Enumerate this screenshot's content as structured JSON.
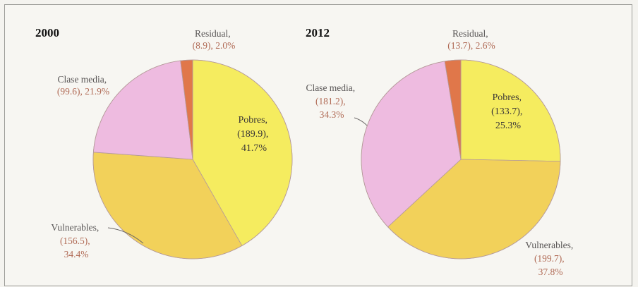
{
  "chart_data": [
    {
      "type": "pie",
      "title": "2000",
      "slices": [
        {
          "name": "Pobres",
          "value": 189.9,
          "percent": 41.7,
          "value_text": "(189.9),",
          "percent_text": "41.7%",
          "color": "#f5ec5f"
        },
        {
          "name": "Vulnerables",
          "value": 156.5,
          "percent": 34.4,
          "value_text": "(156.5),",
          "percent_text": "34.4%",
          "color": "#f2d15a"
        },
        {
          "name": "Clase media",
          "value": 99.6,
          "percent": 21.9,
          "value_text": "(99.6), 21.9%",
          "percent_text": "",
          "color": "#eebbe0"
        },
        {
          "name": "Residual",
          "value": 8.9,
          "percent": 2.0,
          "value_text": "(8.9), 2.0%",
          "percent_text": "",
          "color": "#e0774a"
        }
      ],
      "labels": {
        "pobres": {
          "line1": "Pobres,",
          "line2": "(189.9),",
          "line3": "41.7%"
        },
        "vulnerables": {
          "line1": "Vulnerables,",
          "line2": "(156.5),",
          "line3": "34.4%"
        },
        "clase_media": {
          "line1": "Clase media,",
          "line2": "(99.6), 21.9%"
        },
        "residual": {
          "line1": "Residual,",
          "line2": "(8.9), 2.0%"
        }
      }
    },
    {
      "type": "pie",
      "title": "2012",
      "slices": [
        {
          "name": "Pobres",
          "value": 133.7,
          "percent": 25.3,
          "value_text": "(133.7),",
          "percent_text": "25.3%",
          "color": "#f5ec5f"
        },
        {
          "name": "Vulnerables",
          "value": 199.7,
          "percent": 37.8,
          "value_text": "(199.7),",
          "percent_text": "37.8%",
          "color": "#f2d15a"
        },
        {
          "name": "Clase media",
          "value": 181.2,
          "percent": 34.3,
          "value_text": "(181.2),",
          "percent_text": "34.3%",
          "color": "#eebbe0"
        },
        {
          "name": "Residual",
          "value": 13.7,
          "percent": 2.6,
          "value_text": "(13.7), 2.6%",
          "percent_text": "",
          "color": "#e0774a"
        }
      ],
      "labels": {
        "pobres": {
          "line1": "Pobres,",
          "line2": "(133.7),",
          "line3": "25.3%"
        },
        "vulnerables": {
          "line1": "Vulnerables,",
          "line2": "(199.7),",
          "line3": "37.8%"
        },
        "clase_media": {
          "line1": "Clase media,",
          "line2": "(181.2),",
          "line3": "34.3%"
        },
        "residual": {
          "line1": "Residual,",
          "line2": "(13.7), 2.6%"
        }
      }
    }
  ],
  "colors": {
    "border": "#9c9c98",
    "background": "#f7f6f2",
    "slice_edge": "#b59a9a"
  }
}
